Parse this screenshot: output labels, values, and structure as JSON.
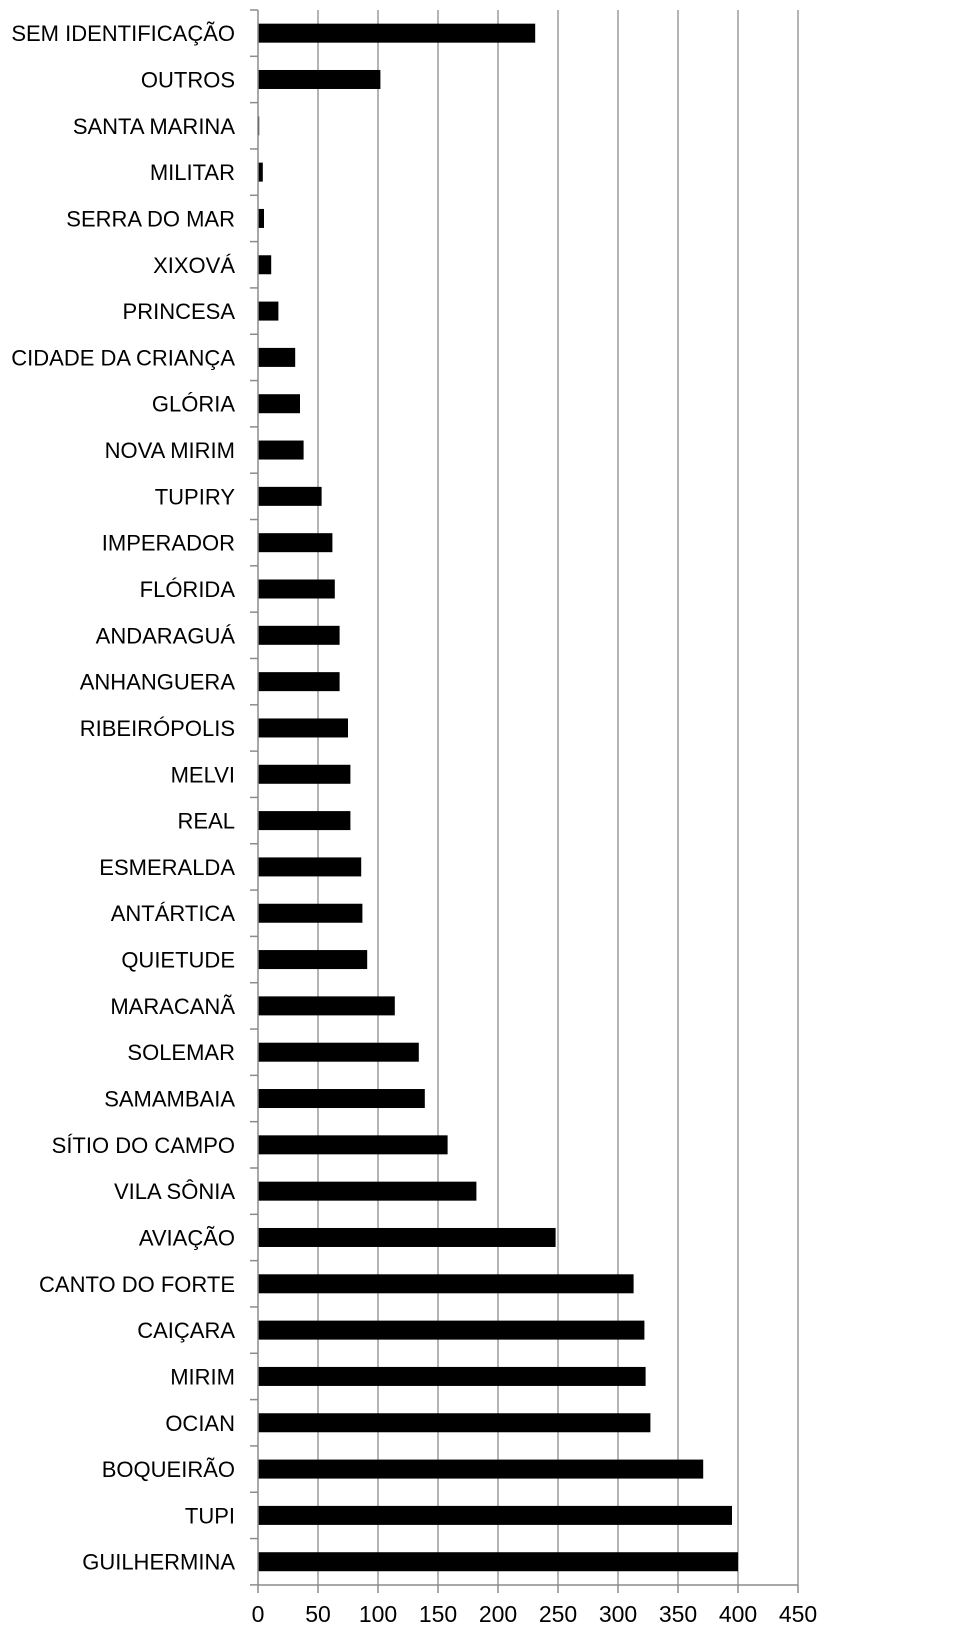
{
  "chart_data": {
    "type": "bar",
    "orientation": "horizontal",
    "title": "",
    "xlabel": "",
    "ylabel": "",
    "xlim": [
      0,
      450
    ],
    "x_ticks": [
      "0",
      "50",
      "100",
      "150",
      "200",
      "250",
      "300",
      "350",
      "400",
      "450"
    ],
    "grid": "vertical",
    "legend": "none",
    "bar_color": "#000000",
    "grid_color": "#8c8c8c",
    "categories": [
      "SEM IDENTIFICAÇÃO",
      "OUTROS",
      "SANTA MARINA",
      "MILITAR",
      "SERRA DO MAR",
      "XIXOVÁ",
      "PRINCESA",
      "CIDADE DA CRIANÇA",
      "GLÓRIA",
      "NOVA MIRIM",
      "TUPIRY",
      "IMPERADOR",
      "FLÓRIDA",
      "ANDARAGUÁ",
      "ANHANGUERA",
      "RIBEIRÓPOLIS",
      "MELVI",
      "REAL",
      "ESMERALDA",
      "ANTÁRTICA",
      "QUIETUDE",
      "MARACANÃ",
      "SOLEMAR",
      "SAMAMBAIA",
      "SÍTIO DO CAMPO",
      "VILA SÔNIA",
      "AVIAÇÃO",
      "CANTO DO FORTE",
      "CAIÇARA",
      "MIRIM",
      "OCIAN",
      "BOQUEIRÃO",
      "TUPI",
      "GUILHERMINA"
    ],
    "values": [
      231,
      102,
      1,
      4,
      5,
      11,
      17,
      31,
      35,
      38,
      53,
      62,
      64,
      68,
      68,
      75,
      77,
      77,
      86,
      87,
      91,
      114,
      134,
      139,
      158,
      182,
      248,
      313,
      322,
      323,
      327,
      371,
      395,
      400
    ]
  }
}
